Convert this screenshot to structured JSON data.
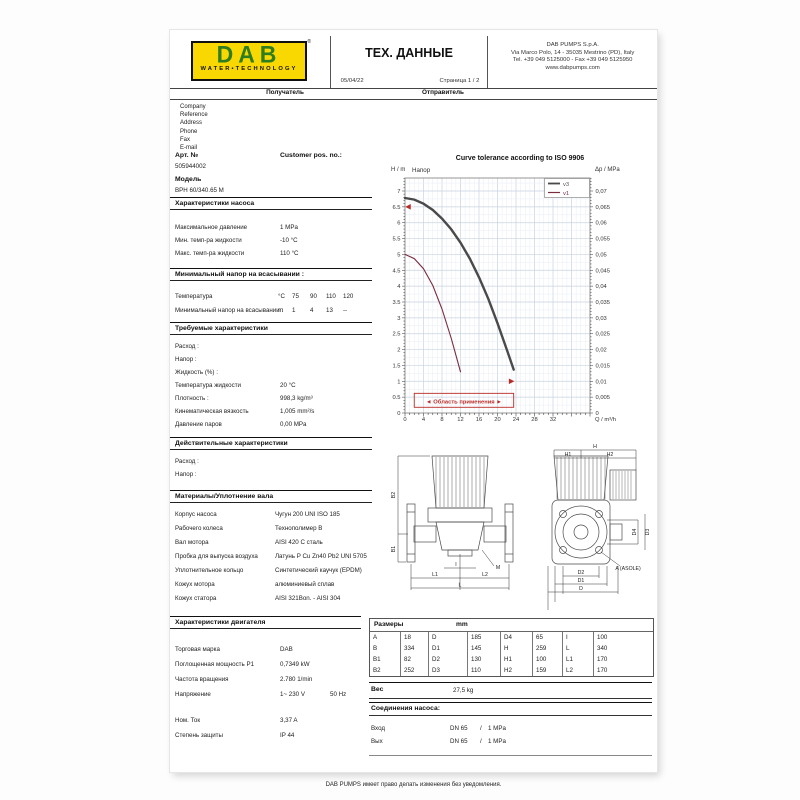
{
  "header": {
    "brand": "DAB",
    "brand_mark": "®",
    "tagline": "WATER•TECHNOLOGY",
    "title": "ТЕХ. ДАННЫЕ",
    "date": "05/04/22",
    "page": "Страница 1 / 2",
    "address": [
      "DAB PUMPS S.p.A.",
      "Via Marco Polo, 14 - 35035 Mestrino (PD), Italy",
      "Tel. +39 049 5125000 - Fax +39 049 5125950",
      "www.dabpumps.com"
    ]
  },
  "parties": {
    "recipient": "Получатель",
    "sender": "Отправитель",
    "fields": [
      "Company",
      "Reference",
      "Address",
      "Phone",
      "Fax",
      "E-mail"
    ]
  },
  "product": {
    "art_label": "Арт. №",
    "art_no": "505944002",
    "customer_pos_label": "Customer pos. no.:",
    "model_label": "Модель",
    "model": "BPH 60/340.65 M"
  },
  "pump_chars": {
    "title": "Характеристики насоса",
    "rows": [
      {
        "l": "Максимальное давление",
        "v": "1 MPa"
      },
      {
        "l": "Мин. темп-ра жидкости",
        "v": "-10 °C"
      },
      {
        "l": "Макс. темп-ра жидкости",
        "v": "110 °C"
      }
    ]
  },
  "min_head": {
    "title": "Минимальный напор на всасывании :",
    "rows": [
      {
        "l": "Температура",
        "u": "°C",
        "vals": [
          "75",
          "90",
          "110",
          "120"
        ]
      },
      {
        "l": "Минимальный напор на всасывании :",
        "u": "m",
        "vals": [
          "1",
          "4",
          "13",
          "--"
        ]
      }
    ]
  },
  "required": {
    "title": "Требуемые характеристики",
    "rows": [
      {
        "l": "Расход :",
        "v": ""
      },
      {
        "l": "Напор :",
        "v": ""
      },
      {
        "l": "Жидкость (%) :",
        "v": ""
      },
      {
        "l": "Температура жидкости",
        "v": "20 °C"
      },
      {
        "l": "Плотность :",
        "v": "998,3 kg/m³"
      },
      {
        "l": "Кинематическая вязкость",
        "v": "1,005 mm²/s"
      },
      {
        "l": "Давление паров",
        "v": "0,00 MPa"
      }
    ]
  },
  "actual": {
    "title": "Действительные характеристики",
    "rows": [
      {
        "l": "Расход :",
        "v": ""
      },
      {
        "l": "Напор :",
        "v": ""
      }
    ]
  },
  "materials": {
    "title": "Материалы/Уплотнение вала",
    "rows": [
      {
        "l": "Корпус насоса",
        "v": "Чугун 200 UNI ISO 185"
      },
      {
        "l": "Рабочего колеса",
        "v": "Технополимер B"
      },
      {
        "l": "Вал мотора",
        "v": "AISI 420 C  сталь"
      },
      {
        "l": "Пробка для выпуска воздуха",
        "v": "Латунь P Cu Zn40 Pb2 UNI 5705"
      },
      {
        "l": "Уплотнительное кольцо",
        "v": "Синтетический каучук (EPDM)"
      },
      {
        "l": "Кожух мотора",
        "v": "алюминиевый сплав"
      },
      {
        "l": "Кожух статора",
        "v": "AISI 321Bon. - AISI 304"
      }
    ]
  },
  "motor": {
    "title": "Характеристики двигателя",
    "rows": [
      {
        "l": "Торговая марка",
        "v": "DAB"
      },
      {
        "l": "Поглощенная мощность P1",
        "v": "0,7349 kW"
      },
      {
        "l": "Частота вращения",
        "v": "2.780 1/min"
      },
      {
        "l": "Напряжение",
        "v": "1~  230 V",
        "v2": "50 Hz"
      },
      {
        "l": "Ном. Ток",
        "v": "3,37 A"
      },
      {
        "l": "Степень защиты",
        "v": "IP 44"
      }
    ]
  },
  "dimensions": {
    "title": "Размеры",
    "unit": "mm",
    "rows": [
      [
        "A",
        "18",
        "D",
        "185",
        "D4",
        "65",
        "I",
        "100"
      ],
      [
        "B",
        "334",
        "D1",
        "145",
        "H",
        "259",
        "L",
        "340"
      ],
      [
        "B1",
        "82",
        "D2",
        "130",
        "H1",
        "100",
        "L1",
        "170"
      ],
      [
        "B2",
        "252",
        "D3",
        "110",
        "H2",
        "159",
        "L2",
        "170"
      ]
    ]
  },
  "weight": {
    "label": "Вес",
    "value": "27,5 kg"
  },
  "connections": {
    "title": "Соединения насоса:",
    "rows": [
      {
        "l": "Вход",
        "dn": "DN 65",
        "sep": "/",
        "p": "1 MPa"
      },
      {
        "l": "Вых",
        "dn": "DN 65",
        "sep": "/",
        "p": "1 MPa"
      }
    ]
  },
  "drawings": {
    "side_labels": {
      "b2": "B2",
      "b1": "B1",
      "l1": "L1",
      "l2": "L2",
      "l": "L",
      "i": "I",
      "m": "M"
    },
    "front_labels": {
      "h": "H",
      "h1": "H1",
      "h2": "H2",
      "d4": "D4",
      "d3": "D3",
      "d2": "D2",
      "d1": "D1",
      "d": "D",
      "asole": "A (ASOLE)"
    }
  },
  "chart_data": {
    "type": "line",
    "title": "Curve tolerance according to ISO 9906",
    "xlabel": "Q / m³/h",
    "ylabel_left": "H / m",
    "ylabel_right": "Δp / MPa",
    "plot_label": "Напор",
    "xlim": [
      0,
      40
    ],
    "x_tick_step": 4,
    "x_label_max": 32,
    "ylim_left": [
      0,
      7.41
    ],
    "y_left_tick_step": 0.5,
    "y_left_label_max": 7,
    "ylim_right": [
      0,
      0.0741
    ],
    "y_right_tick_step": 0.005,
    "y_right_label_max": 0.07,
    "grid": true,
    "legend_position": "top-right",
    "series": [
      {
        "name": "v3",
        "points": [
          [
            0,
            6.78
          ],
          [
            2,
            6.73
          ],
          [
            4,
            6.6
          ],
          [
            6,
            6.4
          ],
          [
            8,
            6.13
          ],
          [
            10,
            5.79
          ],
          [
            12,
            5.37
          ],
          [
            14,
            4.87
          ],
          [
            16,
            4.28
          ],
          [
            18,
            3.6
          ],
          [
            20,
            2.83
          ],
          [
            22,
            2.0
          ],
          [
            23.5,
            1.37
          ]
        ]
      },
      {
        "name": "v1",
        "points": [
          [
            0,
            5.0
          ],
          [
            2,
            4.87
          ],
          [
            4,
            4.55
          ],
          [
            6,
            4.02
          ],
          [
            8,
            3.28
          ],
          [
            10,
            2.35
          ],
          [
            12,
            1.3
          ]
        ]
      }
    ],
    "markers": [
      {
        "type": "arrow-left",
        "q": 0.7,
        "h": 6.5
      },
      {
        "type": "arrow-right",
        "q": 23,
        "h": 1.0
      }
    ],
    "application_range": {
      "label": "◄ Область применения ►",
      "q_start": 2,
      "q_end": 23.5,
      "h_bottom": 0.18,
      "h_top": 0.62
    }
  },
  "footer": "DAB PUMPS имеет право делать изменения без уведомления.",
  "colors": {
    "accent_red": "#b92b27",
    "curve_v3": "#4a4a4a",
    "curve_v1": "#7b2c3e",
    "logo_yellow": "#f8d800",
    "logo_green": "#2e7d1e",
    "grid_major": "#c9d3e1",
    "grid_minor": "#e9edf5"
  }
}
